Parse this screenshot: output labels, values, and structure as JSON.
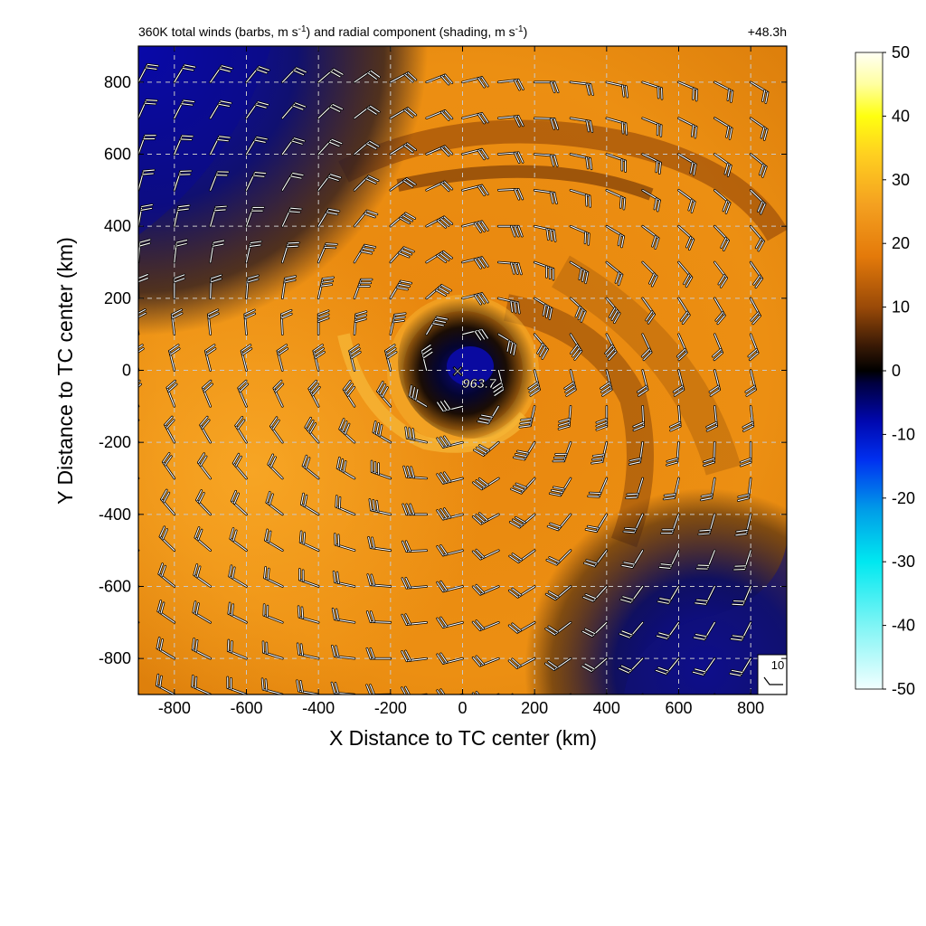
{
  "chart_data": {
    "type": "heatmap",
    "title_left": "360K total winds (barbs, m s",
    "title_left_sup1": "-1",
    "title_left_mid": ") and radial component (shading, m s",
    "title_left_sup2": "-1",
    "title_left_end": ")",
    "title_right": "+48.3h",
    "xlabel": "X Distance to TC center (km)",
    "ylabel": "Y Distance to TC center (km)",
    "xlim": [
      -900,
      900
    ],
    "ylim": [
      -900,
      900
    ],
    "xticks": [
      -800,
      -600,
      -400,
      -200,
      0,
      200,
      400,
      600,
      800
    ],
    "yticks": [
      -800,
      -600,
      -400,
      -200,
      0,
      200,
      400,
      600,
      800
    ],
    "grid": true,
    "center_marker": "×",
    "center_label": "963.7",
    "reference_barb_label": "10",
    "colorbar": {
      "min": -50,
      "max": 50,
      "ticks": [
        50,
        40,
        30,
        20,
        10,
        0,
        -10,
        -20,
        -30,
        -40,
        -50
      ]
    },
    "palette": {
      "dark_blue": "#0a0a96",
      "black": "#000000",
      "dark_brown": "#5a2a05",
      "orange": "#e8860e",
      "light_orange": "#f4a21a",
      "yellow": "#ffe81a",
      "cyan": "#00f0f0"
    }
  }
}
